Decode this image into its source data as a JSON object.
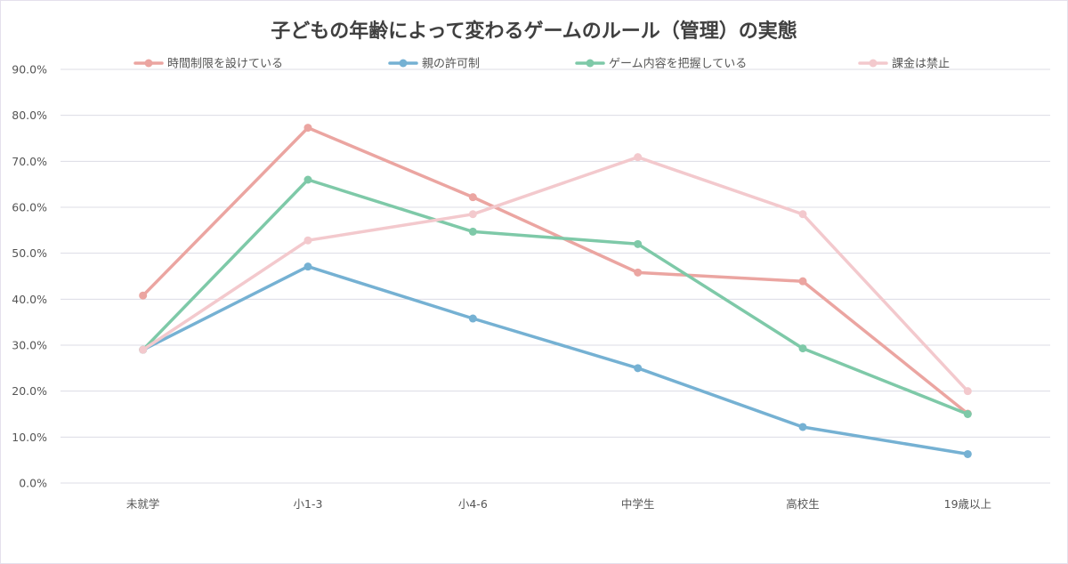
{
  "chart_data": {
    "type": "line",
    "title": "子どもの年齢によって変わるゲームのルール（管理）の実態",
    "xlabel": "",
    "ylabel": "",
    "categories": [
      "未就学",
      "小1-3",
      "小4-6",
      "中学生",
      "高校生",
      "19歳以上"
    ],
    "ylim": [
      0,
      90
    ],
    "yticks": [
      "0.0%",
      "10.0%",
      "20.0%",
      "30.0%",
      "40.0%",
      "50.0%",
      "60.0%",
      "70.0%",
      "80.0%",
      "90.0%"
    ],
    "grid": true,
    "legend_position": "top",
    "series": [
      {
        "name": "時間制限を設けている",
        "color": "#eba5a1",
        "values": [
          40.8,
          77.3,
          62.2,
          45.8,
          43.9,
          15.1
        ]
      },
      {
        "name": "親の許可制",
        "color": "#75b1d3",
        "values": [
          29.0,
          47.1,
          35.8,
          25.0,
          12.2,
          6.3
        ]
      },
      {
        "name": "ゲーム内容を把握している",
        "color": "#7ec9a8",
        "values": [
          29.0,
          66.0,
          54.7,
          52.0,
          29.3,
          15.0
        ]
      },
      {
        "name": "課金は禁止",
        "color": "#f3c9cd",
        "values": [
          29.0,
          52.8,
          58.5,
          70.9,
          58.5,
          20.0
        ]
      }
    ]
  }
}
